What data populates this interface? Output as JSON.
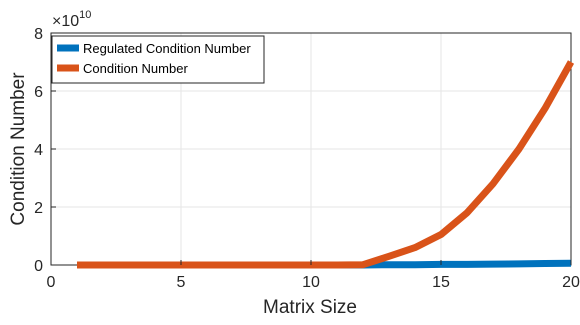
{
  "chart_data": {
    "type": "line",
    "xlabel": "Matrix Size",
    "ylabel": "Condition Number",
    "xlim": [
      0,
      20
    ],
    "ylim": [
      0,
      8
    ],
    "y_multiplier_base": "×10",
    "y_multiplier_exponent": "10",
    "xticks": [
      "0",
      "5",
      "10",
      "15",
      "20"
    ],
    "yticks": [
      "0",
      "2",
      "4",
      "6",
      "8"
    ],
    "grid": true,
    "legend_position": "top-left",
    "x": [
      1,
      2,
      3,
      4,
      5,
      6,
      7,
      8,
      9,
      10,
      11,
      12,
      13,
      14,
      15,
      16,
      17,
      18,
      19,
      20
    ],
    "series": [
      {
        "name": "Regulated Condition Number",
        "color": "#0072BD",
        "values": [
          0,
          0,
          0,
          0,
          0,
          0,
          0,
          0,
          0,
          0,
          0,
          0,
          0.01,
          0.01,
          0.02,
          0.02,
          0.03,
          0.04,
          0.05,
          0.06
        ]
      },
      {
        "name": "Condition Number",
        "color": "#D95319",
        "values": [
          0,
          0,
          0,
          0,
          0,
          0,
          0,
          0,
          0,
          0,
          0,
          0.01,
          0.3,
          0.6,
          1.05,
          1.8,
          2.8,
          4.0,
          5.4,
          7.0
        ]
      }
    ]
  }
}
